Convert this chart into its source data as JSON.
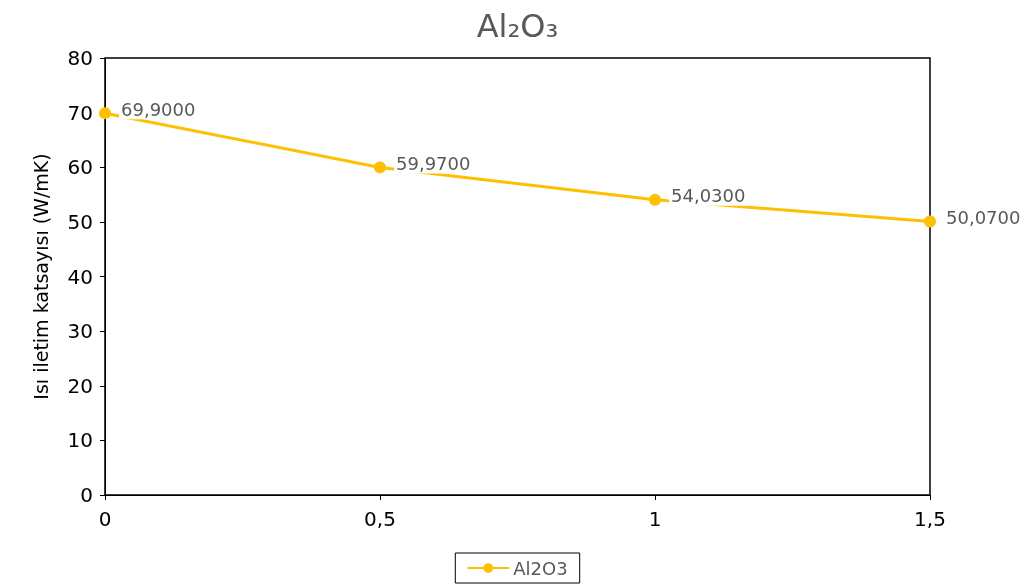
{
  "chart_data": {
    "type": "line",
    "title": "Al₂O₃",
    "ylabel": "Isı iletim katsayısı (W/mK)",
    "x": [
      0,
      0.5,
      1,
      1.5
    ],
    "series": [
      {
        "name": "Al2O3",
        "color": "#ffc000",
        "values": [
          69.9,
          59.97,
          54.03,
          50.07
        ],
        "value_labels": [
          "69,9000",
          "59,9700",
          "54,0300",
          "50,0700"
        ]
      }
    ],
    "xlim": [
      0,
      1.5
    ],
    "xticks": [
      0,
      {
        "value": 0.5,
        "label": "0,5"
      },
      1,
      {
        "value": 1.5,
        "label": "1,5"
      }
    ],
    "ylim": [
      0,
      80
    ],
    "yticks": [
      0,
      10,
      20,
      30,
      40,
      50,
      60,
      70,
      80
    ],
    "grid": false,
    "legend": "bottom",
    "marker": "circle",
    "line_style": "solid"
  }
}
